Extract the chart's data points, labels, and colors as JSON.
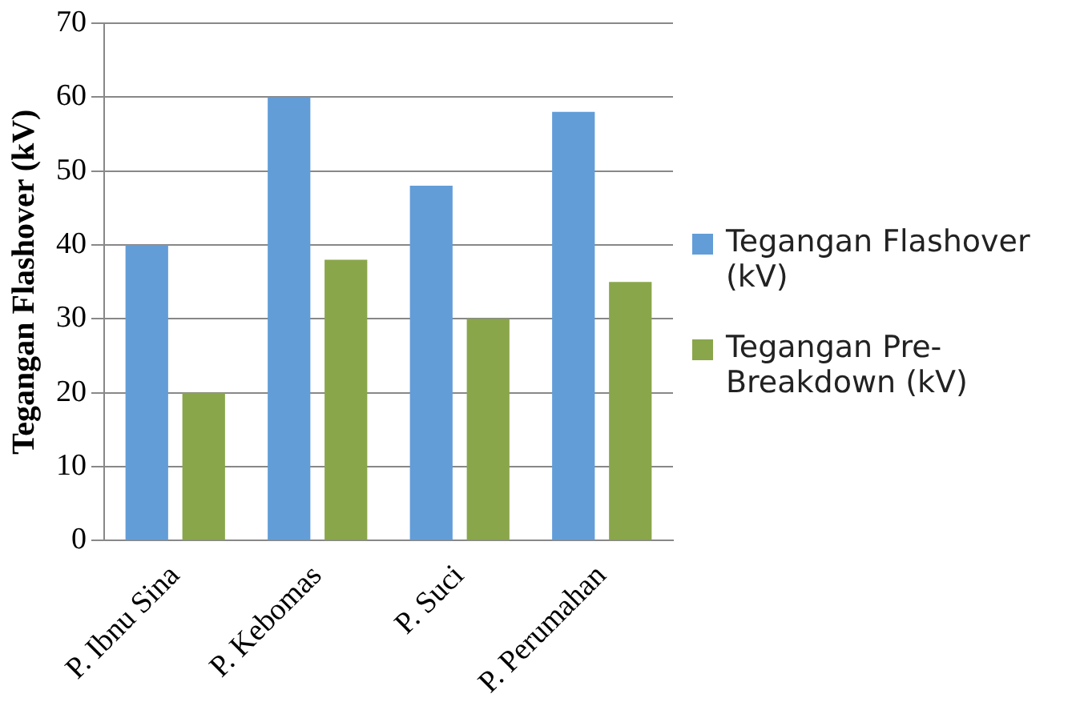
{
  "chart_data": {
    "type": "bar",
    "ylabel": "Tegangan Flashover (kV)",
    "categories": [
      "P. Ibnu Sina",
      "P. Kebomas",
      "P. Suci",
      "P. Perumahan"
    ],
    "series": [
      {
        "name": "Tegangan Flashover (kV)",
        "color": "#629dd8",
        "values": [
          40,
          60,
          48,
          58
        ]
      },
      {
        "name": "Tegangan Pre-Breakdown (kV)",
        "color": "#8aa64a",
        "values": [
          20,
          38,
          30,
          35
        ]
      }
    ],
    "ylim": [
      0,
      70
    ],
    "yticks": [
      0,
      10,
      20,
      30,
      40,
      50,
      60,
      70
    ],
    "grid": "y",
    "legend": "right"
  }
}
